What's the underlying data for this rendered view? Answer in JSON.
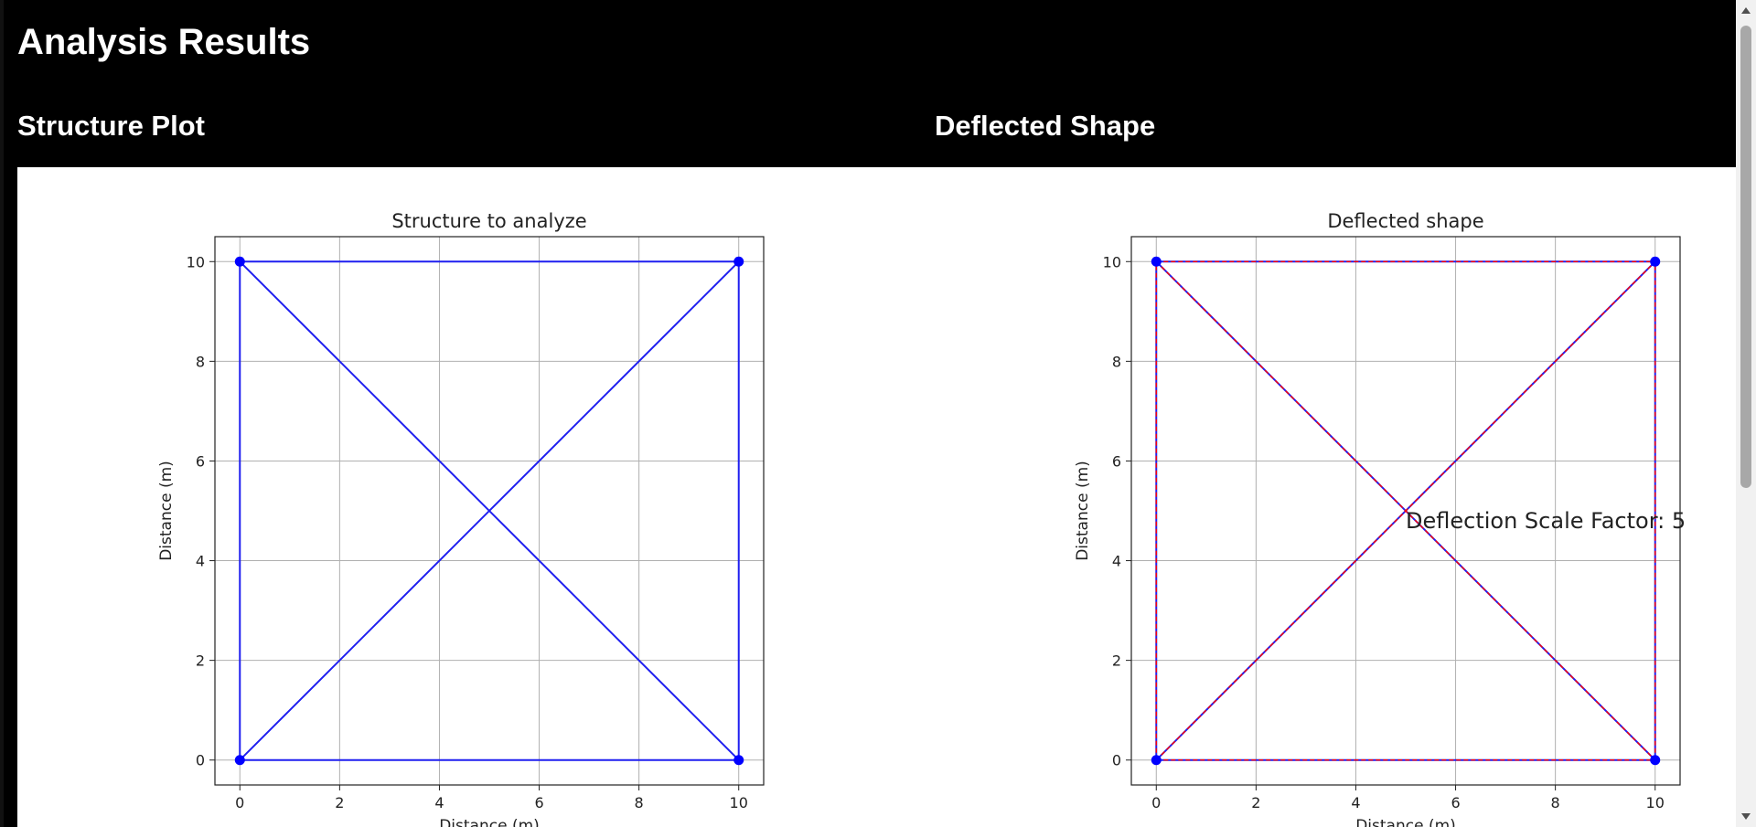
{
  "header": {
    "title": "Analysis Results"
  },
  "sections": {
    "structure_title": "Structure Plot",
    "deflected_title": "Deflected Shape"
  },
  "chart_data": [
    {
      "type": "line",
      "title": "Structure to analyze",
      "xlabel": "Distance (m)",
      "ylabel": "Distance (m)",
      "xlim": [
        -0.5,
        10.5
      ],
      "ylim": [
        -0.5,
        10.5
      ],
      "xticks": [
        0,
        2,
        4,
        6,
        8,
        10
      ],
      "yticks": [
        0,
        2,
        4,
        6,
        8,
        10
      ],
      "grid": true,
      "nodes": [
        [
          0,
          10
        ],
        [
          10,
          10
        ],
        [
          0,
          0
        ],
        [
          10,
          0
        ]
      ],
      "members": [
        [
          [
            0,
            10
          ],
          [
            10,
            10
          ]
        ],
        [
          [
            0,
            0
          ],
          [
            10,
            0
          ]
        ],
        [
          [
            0,
            0
          ],
          [
            0,
            10
          ]
        ],
        [
          [
            10,
            0
          ],
          [
            10,
            10
          ]
        ],
        [
          [
            0,
            10
          ],
          [
            10,
            0
          ]
        ],
        [
          [
            0,
            0
          ],
          [
            10,
            10
          ]
        ]
      ],
      "colors": {
        "member": "#1f1ff0",
        "node": "#0000ff"
      }
    },
    {
      "type": "line",
      "title": "Deflected shape",
      "xlabel": "Distance (m)",
      "ylabel": "Distance (m)",
      "xlim": [
        -0.5,
        10.5
      ],
      "ylim": [
        -0.5,
        10.5
      ],
      "xticks": [
        0,
        2,
        4,
        6,
        8,
        10
      ],
      "yticks": [
        0,
        2,
        4,
        6,
        8,
        10
      ],
      "grid": true,
      "nodes": [
        [
          0,
          10
        ],
        [
          10,
          10
        ],
        [
          0,
          0
        ],
        [
          10,
          0
        ]
      ],
      "members": [
        [
          [
            0,
            10
          ],
          [
            10,
            10
          ]
        ],
        [
          [
            0,
            0
          ],
          [
            10,
            0
          ]
        ],
        [
          [
            0,
            0
          ],
          [
            0,
            10
          ]
        ],
        [
          [
            10,
            0
          ],
          [
            10,
            10
          ]
        ],
        [
          [
            0,
            10
          ],
          [
            10,
            0
          ]
        ],
        [
          [
            0,
            0
          ],
          [
            10,
            10
          ]
        ]
      ],
      "annotation": {
        "text": "Deflection Scale Factor: 5",
        "x": 5,
        "y": 4.8
      },
      "colors": {
        "member": "#1f1ff0",
        "deflected": "#ff0000",
        "node": "#0000ff"
      }
    }
  ]
}
